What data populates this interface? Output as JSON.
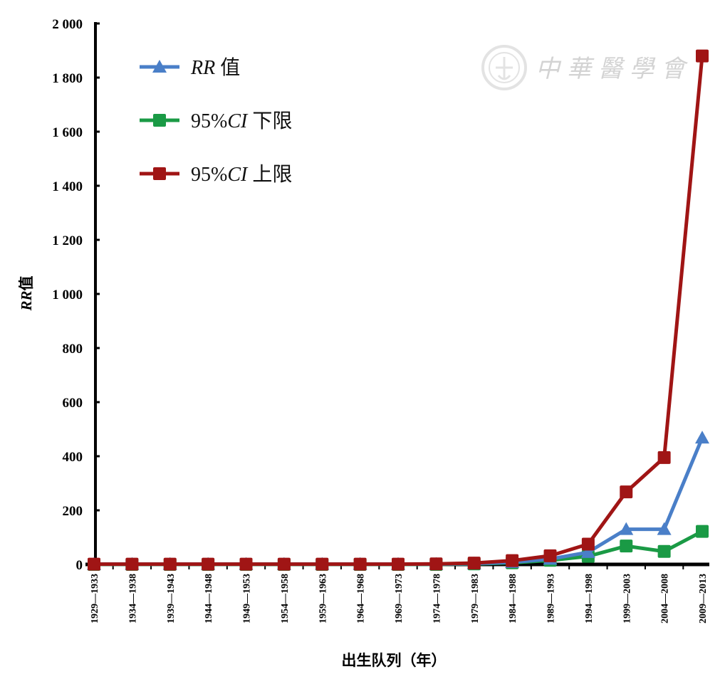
{
  "chart_data": {
    "type": "line",
    "categories": [
      "1929—1933",
      "1934—1938",
      "1939—1943",
      "1944—1948",
      "1949—1953",
      "1954—1958",
      "1959—1963",
      "1964—1968",
      "1969—1973",
      "1974—1978",
      "1979—1983",
      "1984—1988",
      "1989—1993",
      "1994—1998",
      "1999—2003",
      "2004—2008",
      "2009—2013"
    ],
    "series": [
      {
        "name": "RR 值",
        "name_prefix": "RR",
        "name_suffix": " 值",
        "color": "#4a7fc8",
        "marker": "triangle",
        "values": [
          1,
          1,
          1,
          1,
          1,
          1,
          1,
          1,
          1,
          1,
          3,
          8,
          20,
          45,
          130,
          130,
          468
        ]
      },
      {
        "name": "95%CI 下限",
        "name_prefix": "95%",
        "name_italic": "CI",
        "name_suffix": " 下限",
        "color": "#1a9a45",
        "marker": "square",
        "values": [
          0,
          0,
          0,
          0,
          0,
          0,
          0,
          0,
          0,
          0,
          2,
          6,
          15,
          30,
          68,
          48,
          122
        ]
      },
      {
        "name": "95%CI 上限",
        "name_prefix": "95%",
        "name_italic": "CI",
        "name_suffix": " 上限",
        "color": "#a01515",
        "marker": "square",
        "values": [
          1,
          1,
          1,
          1,
          1,
          1,
          1,
          1,
          1,
          2,
          5,
          14,
          32,
          75,
          268,
          395,
          1880
        ]
      }
    ],
    "yticks": [
      0,
      200,
      400,
      600,
      800,
      1000,
      1200,
      1400,
      1600,
      1800,
      2000
    ],
    "ytick_labels": [
      "0",
      "200",
      "400",
      "600",
      "800",
      "1 000",
      "1 200",
      "1 400",
      "1 600",
      "1 800",
      "2 000"
    ],
    "ylim": [
      0,
      2000
    ],
    "xlabel": "出生队列（年）",
    "ylabel": {
      "italic": "RR",
      "suffix": "值"
    },
    "grid": false,
    "legend_position": "top-left"
  },
  "watermark": {
    "text": "中華醫學會"
  }
}
